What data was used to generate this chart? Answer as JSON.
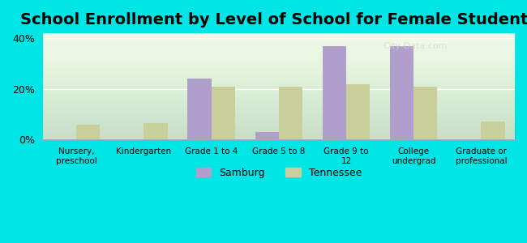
{
  "title": "School Enrollment by Level of School for Female Students",
  "categories": [
    "Nursery,\npreschool",
    "Kindergarten",
    "Grade 1 to 4",
    "Grade 5 to 8",
    "Grade 9 to\n12",
    "College\nundergrad",
    "Graduate or\nprofessional"
  ],
  "samburg": [
    0.0,
    0.0,
    24.0,
    3.0,
    37.0,
    37.0,
    0.0
  ],
  "tennessee": [
    6.0,
    6.5,
    21.0,
    21.0,
    22.0,
    21.0,
    7.0
  ],
  "samburg_color": "#b09fcc",
  "tennessee_color": "#c8cf9a",
  "background_color": "#00e5e5",
  "plot_bg_start": "#f0f8e8",
  "plot_bg_end": "#ffffff",
  "yticks": [
    0,
    20,
    40
  ],
  "ylim": [
    0,
    42
  ],
  "bar_width": 0.35,
  "title_fontsize": 14,
  "watermark": "City-Data.com"
}
